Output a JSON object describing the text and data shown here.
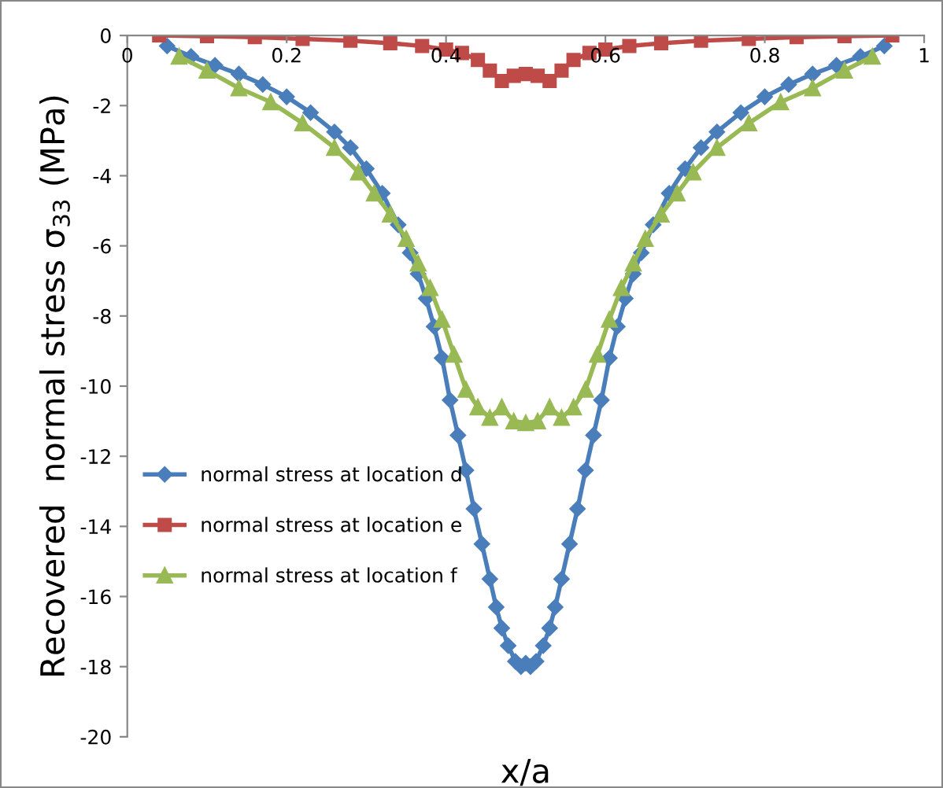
{
  "chart_data": {
    "type": "line",
    "xlabel": "x/a",
    "ylabel": "Recovered  normal stress σ$_{33}$ (MPa)",
    "xlim": [
      0,
      1
    ],
    "xticks": [
      0,
      0.2,
      0.4,
      0.6,
      0.8,
      1
    ],
    "ylim": [
      -20,
      0
    ],
    "yticks": [
      -20,
      -18,
      -16,
      -14,
      -12,
      -10,
      -8,
      -6,
      -4,
      -2,
      0
    ],
    "grid": false,
    "legend": "center left",
    "line_style": "solid",
    "series": [
      {
        "name": "normal stress at location d",
        "color": "#4a7ebb",
        "marker": "diamond",
        "x": [
          0.05,
          0.08,
          0.11,
          0.14,
          0.17,
          0.2,
          0.23,
          0.26,
          0.28,
          0.3,
          0.32,
          0.34,
          0.355,
          0.365,
          0.375,
          0.385,
          0.395,
          0.405,
          0.415,
          0.425,
          0.435,
          0.445,
          0.455,
          0.463,
          0.47,
          0.478,
          0.487,
          0.494,
          0.5,
          0.506,
          0.513,
          0.522,
          0.53,
          0.537,
          0.545,
          0.555,
          0.565,
          0.575,
          0.585,
          0.595,
          0.605,
          0.615,
          0.625,
          0.635,
          0.645,
          0.66,
          0.68,
          0.7,
          0.72,
          0.74,
          0.77,
          0.8,
          0.83,
          0.86,
          0.89,
          0.92,
          0.95
        ],
        "values": [
          -0.3,
          -0.6,
          -0.85,
          -1.1,
          -1.4,
          -1.75,
          -2.2,
          -2.75,
          -3.2,
          -3.8,
          -4.5,
          -5.4,
          -6.2,
          -6.8,
          -7.5,
          -8.3,
          -9.2,
          -10.4,
          -11.4,
          -12.4,
          -13.5,
          -14.5,
          -15.5,
          -16.3,
          -16.9,
          -17.4,
          -17.85,
          -18.0,
          -17.9,
          -18.0,
          -17.85,
          -17.4,
          -16.9,
          -16.3,
          -15.5,
          -14.5,
          -13.5,
          -12.4,
          -11.4,
          -10.4,
          -9.2,
          -8.3,
          -7.5,
          -6.8,
          -6.2,
          -5.4,
          -4.5,
          -3.8,
          -3.2,
          -2.75,
          -2.2,
          -1.75,
          -1.4,
          -1.1,
          -0.85,
          -0.6,
          -0.3
        ]
      },
      {
        "name": "normal stress at location e",
        "color": "#be4b48",
        "marker": "square",
        "x": [
          0.04,
          0.1,
          0.16,
          0.22,
          0.28,
          0.33,
          0.37,
          0.4,
          0.42,
          0.44,
          0.455,
          0.47,
          0.485,
          0.5,
          0.515,
          0.53,
          0.545,
          0.56,
          0.58,
          0.6,
          0.63,
          0.67,
          0.72,
          0.78,
          0.84,
          0.9,
          0.96
        ],
        "values": [
          0,
          -0.02,
          -0.05,
          -0.1,
          -0.15,
          -0.22,
          -0.3,
          -0.4,
          -0.5,
          -0.7,
          -1.0,
          -1.3,
          -1.15,
          -1.1,
          -1.15,
          -1.3,
          -1.0,
          -0.7,
          -0.5,
          -0.4,
          -0.3,
          -0.22,
          -0.15,
          -0.1,
          -0.05,
          -0.02,
          0
        ]
      },
      {
        "name": "normal stress at location f",
        "color": "#98b954",
        "marker": "triangle",
        "x": [
          0.065,
          0.1,
          0.14,
          0.18,
          0.22,
          0.26,
          0.29,
          0.31,
          0.33,
          0.35,
          0.365,
          0.38,
          0.395,
          0.41,
          0.425,
          0.44,
          0.455,
          0.47,
          0.485,
          0.5,
          0.515,
          0.53,
          0.545,
          0.56,
          0.575,
          0.59,
          0.605,
          0.62,
          0.635,
          0.65,
          0.67,
          0.69,
          0.71,
          0.74,
          0.78,
          0.82,
          0.86,
          0.9,
          0.935
        ],
        "values": [
          -0.6,
          -1.0,
          -1.5,
          -1.9,
          -2.5,
          -3.2,
          -3.9,
          -4.5,
          -5.1,
          -5.8,
          -6.5,
          -7.2,
          -8.1,
          -9.1,
          -10.1,
          -10.6,
          -10.9,
          -10.6,
          -11.0,
          -11.05,
          -11.0,
          -10.6,
          -10.9,
          -10.6,
          -10.1,
          -9.1,
          -8.1,
          -7.2,
          -6.5,
          -5.8,
          -5.1,
          -4.5,
          -3.9,
          -3.2,
          -2.5,
          -1.9,
          -1.5,
          -1.0,
          -0.6
        ]
      }
    ]
  }
}
